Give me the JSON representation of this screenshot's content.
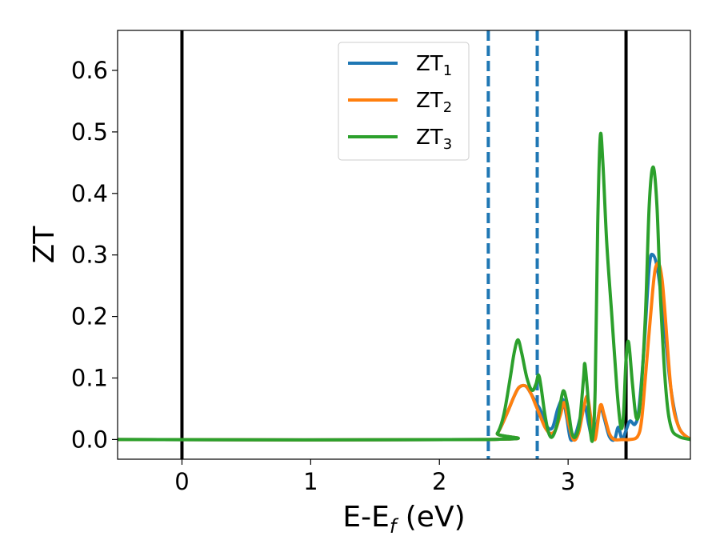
{
  "chart_data": {
    "type": "line",
    "title": "",
    "xlabel": {
      "main": "E-E",
      "sub": "f",
      "suffix": " (eV)"
    },
    "ylabel": "ZT",
    "xlim": [
      -0.5,
      3.95
    ],
    "ylim": [
      -0.032,
      0.665
    ],
    "xticks": [
      0,
      1,
      2,
      3
    ],
    "xtick_labels": [
      "0",
      "1",
      "2",
      "3"
    ],
    "yticks": [
      0.0,
      0.1,
      0.2,
      0.3,
      0.4,
      0.5,
      0.6
    ],
    "ytick_labels": [
      "0.0",
      "0.1",
      "0.2",
      "0.3",
      "0.4",
      "0.5",
      "0.6"
    ],
    "grid": false,
    "legend_position": "top-center",
    "vlines": [
      {
        "x": 0.0,
        "style": "solid",
        "color": "#000000"
      },
      {
        "x": 3.45,
        "style": "solid",
        "color": "#000000"
      },
      {
        "x": 2.38,
        "style": "dashed",
        "color": "#1f77b4"
      },
      {
        "x": 2.76,
        "style": "dashed",
        "color": "#1f77b4"
      }
    ],
    "series": [
      {
        "name": {
          "main": "ZT",
          "sub": "1"
        },
        "color": "#1f77b4",
        "x": [
          -0.5,
          2.38,
          2.45,
          2.52,
          2.58,
          2.62,
          2.67,
          2.71,
          2.75,
          2.78,
          2.8,
          2.84,
          2.88,
          2.92,
          2.96,
          2.99,
          3.02,
          3.06,
          3.1,
          3.13,
          3.16,
          3.19,
          3.22,
          3.25,
          3.28,
          3.32,
          3.36,
          3.39,
          3.42,
          3.45,
          3.48,
          3.52,
          3.55,
          3.59,
          3.63,
          3.66,
          3.7,
          3.75,
          3.8,
          3.86,
          3.95
        ],
        "y": [
          0.0,
          0.0,
          0.01,
          0.04,
          0.07,
          0.085,
          0.087,
          0.075,
          0.06,
          0.05,
          0.04,
          0.02,
          0.02,
          0.05,
          0.065,
          0.035,
          0.0,
          0.01,
          0.04,
          0.055,
          0.025,
          0.0,
          0.02,
          0.052,
          0.035,
          0.005,
          0.0,
          0.02,
          0.0,
          0.015,
          0.03,
          0.025,
          0.05,
          0.15,
          0.28,
          0.3,
          0.27,
          0.18,
          0.08,
          0.02,
          0.0
        ]
      },
      {
        "name": {
          "main": "ZT",
          "sub": "2"
        },
        "color": "#ff7f0e",
        "x": [
          -0.5,
          2.38,
          2.45,
          2.52,
          2.58,
          2.62,
          2.67,
          2.71,
          2.75,
          2.78,
          2.82,
          2.86,
          2.9,
          2.94,
          2.97,
          3.0,
          3.04,
          3.08,
          3.12,
          3.15,
          3.18,
          3.21,
          3.25,
          3.28,
          3.32,
          3.36,
          3.42,
          3.48,
          3.54,
          3.57,
          3.6,
          3.64,
          3.68,
          3.73,
          3.8,
          3.86,
          3.95
        ],
        "y": [
          0.0,
          0.0,
          0.01,
          0.04,
          0.07,
          0.085,
          0.087,
          0.075,
          0.055,
          0.04,
          0.02,
          0.01,
          0.015,
          0.04,
          0.06,
          0.03,
          0.0,
          0.01,
          0.05,
          0.07,
          0.03,
          0.0,
          0.055,
          0.04,
          0.01,
          0.0,
          0.0,
          0.0,
          0.005,
          0.03,
          0.1,
          0.2,
          0.28,
          0.26,
          0.08,
          0.02,
          0.0
        ]
      },
      {
        "name": {
          "main": "ZT",
          "sub": "3"
        },
        "color": "#2ca02c",
        "x": [
          -0.5,
          2.38,
          2.45,
          2.5,
          2.55,
          2.58,
          2.61,
          2.64,
          2.68,
          2.72,
          2.75,
          2.77,
          2.79,
          2.82,
          2.85,
          2.88,
          2.92,
          2.95,
          2.97,
          3.0,
          3.03,
          3.06,
          3.09,
          3.12,
          3.13,
          3.15,
          3.17,
          3.19,
          3.21,
          3.23,
          3.25,
          3.27,
          3.3,
          3.34,
          3.38,
          3.41,
          3.43,
          3.45,
          3.47,
          3.5,
          3.53,
          3.56,
          3.6,
          3.63,
          3.66,
          3.69,
          3.72,
          3.76,
          3.8,
          3.86,
          3.95
        ],
        "y": [
          0.0,
          0.0,
          0.01,
          0.04,
          0.1,
          0.14,
          0.162,
          0.14,
          0.1,
          0.08,
          0.09,
          0.105,
          0.085,
          0.04,
          0.01,
          0.005,
          0.03,
          0.07,
          0.078,
          0.05,
          0.01,
          0.005,
          0.03,
          0.1,
          0.123,
          0.08,
          0.02,
          0.0,
          0.08,
          0.35,
          0.493,
          0.45,
          0.32,
          0.2,
          0.08,
          0.02,
          0.04,
          0.13,
          0.158,
          0.09,
          0.035,
          0.06,
          0.2,
          0.38,
          0.443,
          0.38,
          0.22,
          0.08,
          0.02,
          0.005,
          0.0
        ]
      }
    ]
  }
}
